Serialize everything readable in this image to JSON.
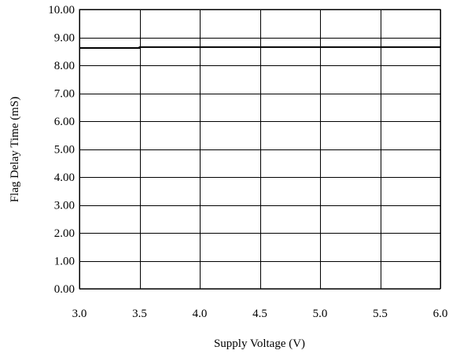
{
  "chart_data": {
    "type": "line",
    "title": "",
    "xlabel": "Supply Voltage (V)",
    "ylabel": "Flag Delay Time  (mS)",
    "xlim": [
      3.0,
      6.0
    ],
    "ylim": [
      0.0,
      10.0
    ],
    "x_ticks": [
      "3.0",
      "3.5",
      "4.0",
      "4.5",
      "5.0",
      "5.5",
      "6.0"
    ],
    "y_ticks": [
      "0.00",
      "1.00",
      "2.00",
      "3.00",
      "4.00",
      "5.00",
      "6.00",
      "7.00",
      "8.00",
      "9.00",
      "10.00"
    ],
    "grid": true,
    "series": [
      {
        "x": [
          3.0,
          3.5,
          3.5,
          4.0,
          4.5,
          5.0,
          5.5,
          6.0
        ],
        "values": [
          8.62,
          8.62,
          8.65,
          8.65,
          8.65,
          8.65,
          8.65,
          8.65
        ],
        "color": "#000000"
      }
    ]
  }
}
